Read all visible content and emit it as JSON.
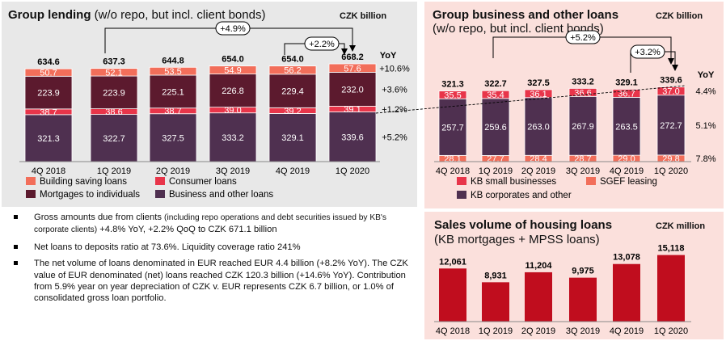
{
  "panel1": {
    "title": "Group lending",
    "title_suffix": "(w/o repo, but incl. client bonds)",
    "unit": "CZK billion"
  },
  "panel2": {
    "title": "Group business and other loans",
    "subtitle": "(w/o repo, but incl. client bonds)",
    "unit": "CZK billion"
  },
  "panel3": {
    "title": "Sales volume of housing loans",
    "subtitle": "(KB mortgages + MPSS loans)",
    "unit": "CZK million"
  },
  "bullets": [
    {
      "pre": "Gross amounts due from clients ",
      "small": "(including repo operations and debt securities issued by KB's corporate clients)",
      "post": " +4.8% YoY, +2.2% QoQ to CZK 671.1 billion"
    },
    {
      "pre": "Net loans to deposits ratio at 73.6%. Liquidity coverage ratio 241%",
      "small": "",
      "post": ""
    },
    {
      "pre": "The net volume of loans denominated in EUR reached EUR 4.4 billion (+8.2% YoY). The CZK value of EUR denominated (net) loans reached CZK 120.3 billion (+14.6% YoY). Contribution from 5.9% year on year depreciation of CZK v. EUR represents CZK 6.7 billion, or 1.0% of consolidated gross loan portfolio.",
      "small": "",
      "post": ""
    }
  ],
  "chart_data": [
    {
      "type": "bar",
      "stacked": true,
      "categories": [
        "4Q 2018",
        "1Q 2019",
        "2Q 2019",
        "3Q 2019",
        "4Q 2019",
        "1Q 2020"
      ],
      "series": [
        {
          "name": "Business and other loans",
          "color": "#4f3050",
          "values": [
            321.3,
            322.7,
            327.5,
            333.2,
            329.1,
            339.6
          ]
        },
        {
          "name": "Consumer loans",
          "color": "#e8354a",
          "values": [
            38.7,
            38.6,
            38.7,
            39.0,
            39.2,
            39.1
          ]
        },
        {
          "name": "Mortgages to individuals",
          "color": "#5c1a2e",
          "values": [
            223.9,
            223.9,
            225.1,
            226.8,
            229.4,
            232.0
          ]
        },
        {
          "name": "Building saving loans",
          "color": "#f26e5a",
          "values": [
            50.7,
            52.1,
            53.5,
            54.9,
            56.2,
            57.6
          ]
        }
      ],
      "totals": [
        634.6,
        637.3,
        644.8,
        654.0,
        654.0,
        668.2
      ],
      "yoy_label": "YoY",
      "yoy": [
        "+10.6%",
        "+3.6%",
        "+1.2%",
        "+5.2%"
      ],
      "growth_arrows": [
        "+4.9%",
        "+2.2%"
      ],
      "legend": [
        "Building saving loans",
        "Consumer loans",
        "Mortgages to individuals",
        "Business and other loans"
      ]
    },
    {
      "type": "bar",
      "stacked": true,
      "categories": [
        "4Q 2018",
        "1Q 2019",
        "2Q 2019",
        "3Q 2019",
        "4Q 2019",
        "1Q 2020"
      ],
      "series": [
        {
          "name": "SGEF leasing",
          "color": "#f26e5a",
          "values": [
            28.1,
            27.7,
            28.4,
            28.7,
            29.0,
            29.8
          ]
        },
        {
          "name": "KB corporates and other",
          "color": "#4f3050",
          "values": [
            257.7,
            259.6,
            263.0,
            267.9,
            263.5,
            272.7
          ]
        },
        {
          "name": "KB small businesses",
          "color": "#e8354a",
          "values": [
            35.5,
            35.4,
            36.1,
            36.6,
            36.7,
            37.0
          ]
        }
      ],
      "totals": [
        321.3,
        322.7,
        327.5,
        333.2,
        329.1,
        339.6
      ],
      "yoy_label": "YoY",
      "yoy": [
        "4.4%",
        "5.1%",
        "7.8%"
      ],
      "growth_arrows": [
        "+5.2%",
        "+3.2%"
      ],
      "legend": [
        "KB small businesses",
        "SGEF leasing",
        "KB corporates and other"
      ]
    },
    {
      "type": "bar",
      "categories": [
        "4Q 2018",
        "1Q 2019",
        "2Q 2019",
        "3Q 2019",
        "4Q 2019",
        "1Q 2020"
      ],
      "values": [
        12061,
        8931,
        11204,
        9975,
        13078,
        15118
      ],
      "labels": [
        "12,061",
        "8,931",
        "11,204",
        "9,975",
        "13,078",
        "15,118"
      ],
      "color": "#c00d1e"
    }
  ]
}
